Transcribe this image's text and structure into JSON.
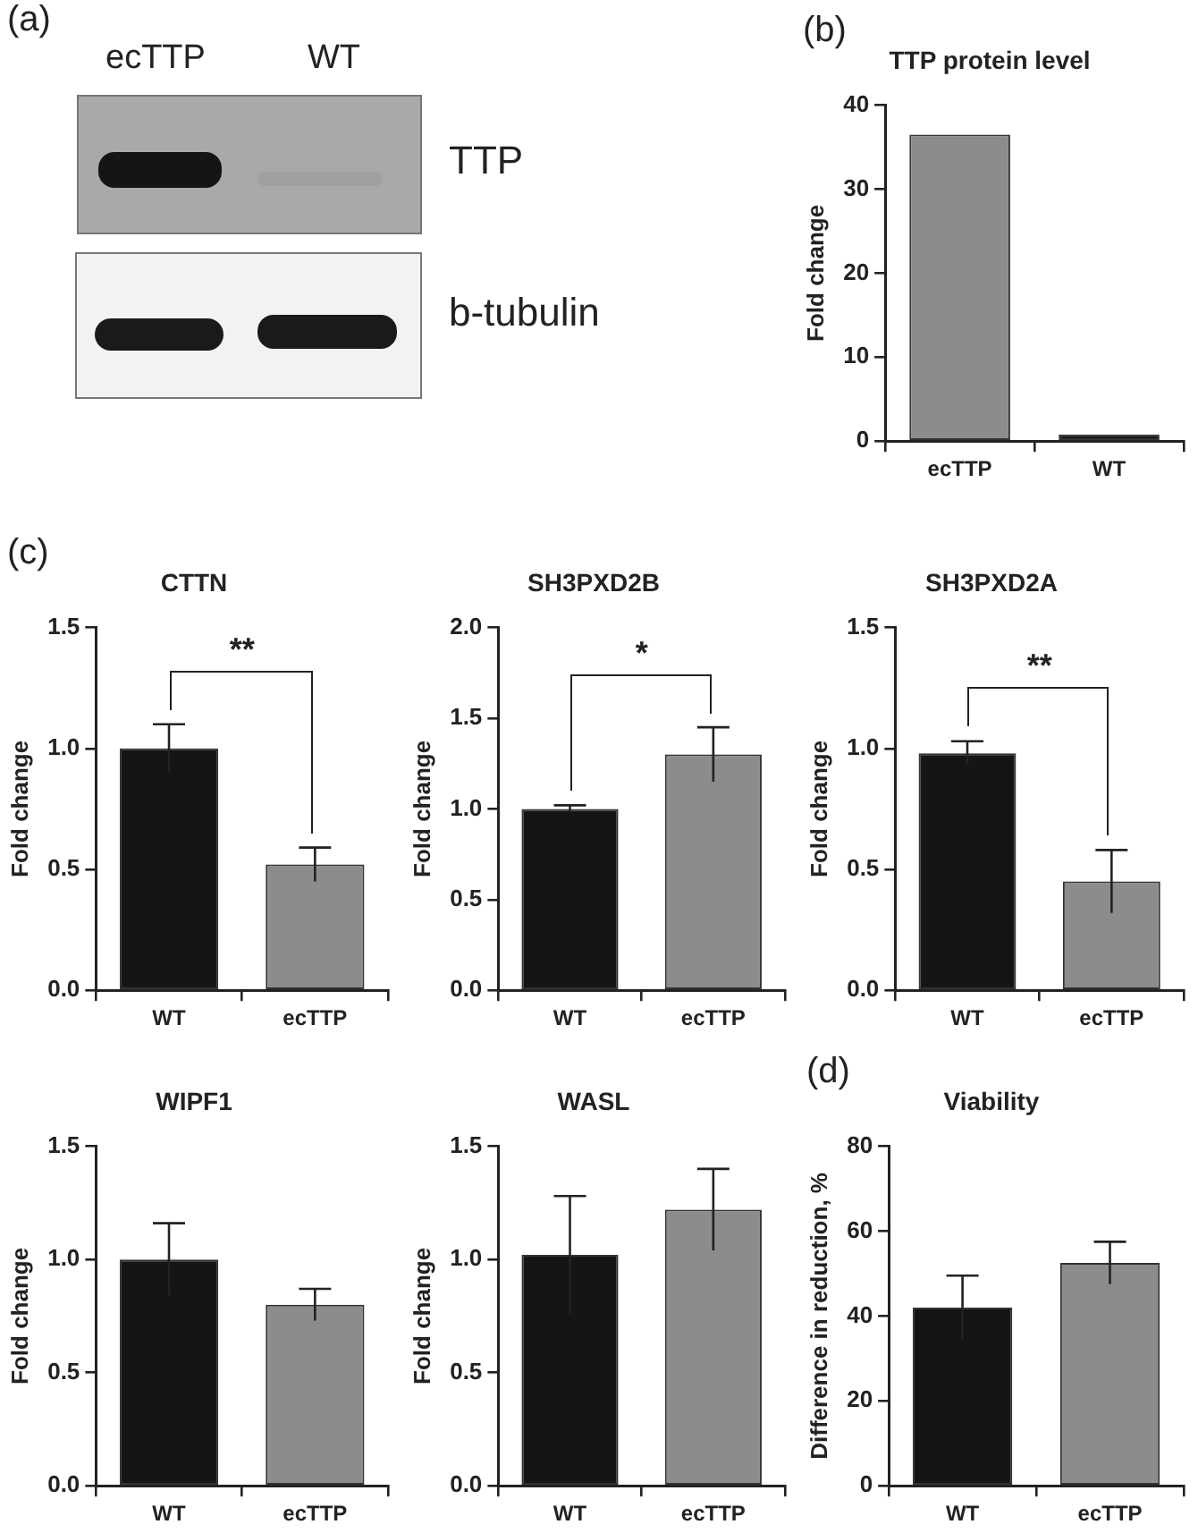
{
  "chart_data": [
    {
      "type": "other",
      "annotations": [
        "(a)",
        "ecTTP",
        "WT",
        "TTP",
        "b-tubulin"
      ]
    },
    {
      "type": "bar",
      "title": "TTP protein level",
      "ylabel": "Fold change",
      "categories": [
        "ecTTP",
        "WT"
      ],
      "values": [
        36.5,
        0.8
      ],
      "colors": [
        "#8c8c8c",
        "#151515"
      ],
      "ylim": [
        0,
        40
      ],
      "yticks": [
        0,
        10,
        20,
        30,
        40
      ],
      "grid": false,
      "legend": false,
      "annotations": [
        "(b)"
      ]
    },
    {
      "type": "bar",
      "title": "CTTN",
      "ylabel": "Fold change",
      "categories": [
        "WT",
        "ecTTP"
      ],
      "values": [
        1.0,
        0.52
      ],
      "errors": [
        0.1,
        0.07
      ],
      "colors": [
        "#151515",
        "#8c8c8c"
      ],
      "ylim": [
        0,
        1.5
      ],
      "yticks": [
        {
          "value": 0,
          "label": "0.0"
        },
        0.5,
        {
          "value": 1,
          "label": "1.0"
        },
        1.5
      ],
      "grid": false,
      "legend": false,
      "annotations": [
        "(c)",
        "**"
      ]
    },
    {
      "type": "bar",
      "title": "SH3PXD2B",
      "ylabel": "Fold change",
      "categories": [
        "WT",
        "ecTTP"
      ],
      "values": [
        1.0,
        1.3
      ],
      "errors": [
        0.02,
        0.15
      ],
      "colors": [
        "#151515",
        "#8c8c8c"
      ],
      "ylim": [
        0,
        2
      ],
      "yticks": [
        {
          "value": 0,
          "label": "0.0"
        },
        0.5,
        {
          "value": 1,
          "label": "1.0"
        },
        1.5,
        {
          "value": 2,
          "label": "2.0"
        }
      ],
      "grid": false,
      "legend": false,
      "annotations": [
        "*"
      ]
    },
    {
      "type": "bar",
      "title": "SH3PXD2A",
      "ylabel": "Fold change",
      "categories": [
        "WT",
        "ecTTP"
      ],
      "values": [
        0.98,
        0.45
      ],
      "errors": [
        0.05,
        0.13
      ],
      "colors": [
        "#151515",
        "#8c8c8c"
      ],
      "ylim": [
        0,
        1.5
      ],
      "yticks": [
        {
          "value": 0,
          "label": "0.0"
        },
        0.5,
        {
          "value": 1,
          "label": "1.0"
        },
        1.5
      ],
      "grid": false,
      "legend": false,
      "annotations": [
        "**"
      ]
    },
    {
      "type": "bar",
      "title": "WIPF1",
      "ylabel": "Fold change",
      "categories": [
        "WT",
        "ecTTP"
      ],
      "values": [
        1.0,
        0.8
      ],
      "errors": [
        0.16,
        0.07
      ],
      "colors": [
        "#151515",
        "#8c8c8c"
      ],
      "ylim": [
        0,
        1.5
      ],
      "yticks": [
        {
          "value": 0,
          "label": "0.0"
        },
        0.5,
        {
          "value": 1,
          "label": "1.0"
        },
        1.5
      ],
      "grid": false,
      "legend": false
    },
    {
      "type": "bar",
      "title": "WASL",
      "ylabel": "Fold change",
      "categories": [
        "WT",
        "ecTTP"
      ],
      "values": [
        1.02,
        1.22
      ],
      "errors": [
        0.26,
        0.18
      ],
      "colors": [
        "#151515",
        "#8c8c8c"
      ],
      "ylim": [
        0,
        1.5
      ],
      "yticks": [
        {
          "value": 0,
          "label": "0.0"
        },
        0.5,
        {
          "value": 1,
          "label": "1.0"
        },
        1.5
      ],
      "grid": false,
      "legend": false
    },
    {
      "type": "bar",
      "title": "Viability",
      "ylabel": "Difference in reduction, %",
      "categories": [
        "WT",
        "ecTTP"
      ],
      "values": [
        42,
        52.5
      ],
      "errors": [
        7.5,
        5
      ],
      "colors": [
        "#151515",
        "#8c8c8c"
      ],
      "ylim": [
        0,
        80
      ],
      "yticks": [
        0,
        20,
        40,
        60,
        80
      ],
      "grid": false,
      "legend": false,
      "annotations": [
        "(d)"
      ]
    }
  ]
}
